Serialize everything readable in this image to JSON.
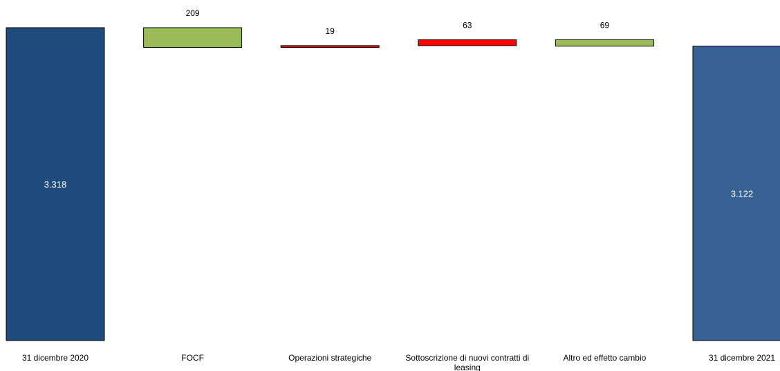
{
  "chart_data": {
    "type": "waterfall",
    "unit": "",
    "categories": [
      "31 dicembre 2020",
      "FOCF",
      "Operazioni strategiche",
      "Sottoscrizione di nuovi contratti di leasing",
      "Altro ed effetto cambio",
      "31 dicembre 2021"
    ],
    "steps": [
      {
        "label": "31 dicembre 2020",
        "kind": "total",
        "value": 3318,
        "display": "3.318",
        "color": "#1f4a7c"
      },
      {
        "label": "FOCF",
        "kind": "decrease",
        "value": 209,
        "display": "209",
        "color": "#9bbb59"
      },
      {
        "label": "Operazioni strategiche",
        "kind": "increase",
        "value": 19,
        "display": "19",
        "color": "#ff0000"
      },
      {
        "label": "Sottoscrizione di nuovi contratti di leasing",
        "kind": "increase",
        "value": 63,
        "display": "63",
        "color": "#ff0000"
      },
      {
        "label": "Altro ed effetto cambio",
        "kind": "decrease",
        "value": 69,
        "display": "69",
        "color": "#9bbb59"
      },
      {
        "label": "31 dicembre 2021",
        "kind": "total",
        "value": 3122,
        "display": "3.122",
        "color": "#376194"
      }
    ],
    "value_axis_range": [
      0,
      3318
    ],
    "grid": false,
    "legend": "none"
  }
}
